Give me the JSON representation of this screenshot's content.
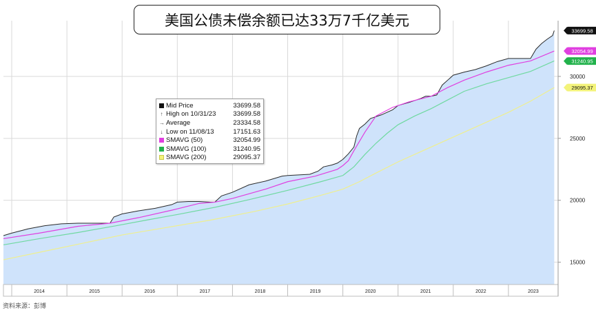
{
  "title": "美国公债未偿余额已达33万7千亿美元",
  "footer_text": "资料来源：彭博",
  "colors": {
    "area_fill": "#cfe3fb",
    "area_line": "#2a2a2a",
    "sma50": "#e03fe0",
    "sma100": "#6fd9a0",
    "sma200": "#efef8e",
    "grid": "#d9d9d9"
  },
  "legend": [
    {
      "name": "Mid Price",
      "value": "33699.58",
      "marker": "black-square"
    },
    {
      "name": "High on 10/31/23",
      "value": "33699.58",
      "marker": "high-arrow"
    },
    {
      "name": "Average",
      "value": "23334.58",
      "marker": "average-dash"
    },
    {
      "name": "Low on 11/08/13",
      "value": "17151.63",
      "marker": "low-arrow"
    },
    {
      "name": "SMAVG (50)",
      "value": "32054.99",
      "marker": "magenta-square"
    },
    {
      "name": "SMAVG (100)",
      "value": "31240.95",
      "marker": "green-square"
    },
    {
      "name": "SMAVG (200)",
      "value": "29095.37",
      "marker": "yellow-square"
    }
  ],
  "chart_data": {
    "type": "area",
    "title": "美国公债未偿余额已达33万7千亿美元",
    "x_tick_labels": [
      "2014",
      "2015",
      "2016",
      "2017",
      "2018",
      "2019",
      "2020",
      "2021",
      "2022",
      "2023"
    ],
    "y_tick_labels": [
      "15000",
      "20000",
      "25000",
      "30000"
    ],
    "y_ticks": [
      15000,
      20000,
      25000,
      30000
    ],
    "ylim": [
      13200,
      34500
    ],
    "xlim": [
      2013.85,
      2023.9
    ],
    "grid": true,
    "legend_position": "upper-left",
    "series": [
      {
        "name": "Mid Price",
        "style": "area",
        "x": [
          2013.85,
          2014.0,
          2014.3,
          2014.6,
          2014.9,
          2015.2,
          2015.5,
          2015.78,
          2015.85,
          2016.0,
          2016.3,
          2016.6,
          2016.9,
          2017.0,
          2017.2,
          2017.4,
          2017.6,
          2017.68,
          2017.8,
          2018.0,
          2018.3,
          2018.6,
          2018.9,
          2019.0,
          2019.2,
          2019.4,
          2019.55,
          2019.65,
          2019.8,
          2019.9,
          2020.0,
          2020.1,
          2020.2,
          2020.25,
          2020.3,
          2020.4,
          2020.5,
          2020.7,
          2020.9,
          2021.0,
          2021.2,
          2021.4,
          2021.5,
          2021.6,
          2021.7,
          2021.8,
          2021.9,
          2021.95,
          2022.0,
          2022.2,
          2022.4,
          2022.6,
          2022.8,
          2023.0,
          2023.2,
          2023.4,
          2023.5,
          2023.6,
          2023.7,
          2023.8,
          2023.83
        ],
        "y": [
          17150,
          17350,
          17700,
          17950,
          18100,
          18150,
          18150,
          18150,
          18650,
          18900,
          19150,
          19350,
          19650,
          19850,
          19900,
          19900,
          19850,
          19850,
          20350,
          20650,
          21250,
          21550,
          21950,
          22000,
          22050,
          22100,
          22350,
          22700,
          22850,
          23000,
          23300,
          23750,
          24300,
          25200,
          25800,
          26150,
          26600,
          26900,
          27300,
          27650,
          27900,
          28200,
          28400,
          28400,
          28500,
          29300,
          29700,
          29900,
          30100,
          30350,
          30550,
          30850,
          31200,
          31450,
          31450,
          31450,
          32200,
          32650,
          33000,
          33300,
          33700
        ]
      },
      {
        "name": "SMAVG (50)",
        "style": "line",
        "x": [
          2013.85,
          2014.5,
          2015.2,
          2015.78,
          2016.3,
          2016.9,
          2017.4,
          2017.68,
          2018.0,
          2018.6,
          2019.0,
          2019.5,
          2019.9,
          2020.0,
          2020.1,
          2020.2,
          2020.4,
          2020.6,
          2020.9,
          2021.2,
          2021.6,
          2021.9,
          2022.2,
          2022.6,
          2023.0,
          2023.4,
          2023.83
        ],
        "y": [
          16900,
          17350,
          17900,
          18150,
          18600,
          19200,
          19750,
          19850,
          20150,
          20900,
          21500,
          21950,
          22500,
          22800,
          23200,
          24000,
          25500,
          26800,
          27500,
          27950,
          28400,
          29100,
          29700,
          30350,
          30900,
          31250,
          32050
        ]
      },
      {
        "name": "SMAVG (100)",
        "style": "line",
        "x": [
          2013.85,
          2014.5,
          2015.2,
          2015.9,
          2016.5,
          2017.0,
          2017.7,
          2018.3,
          2019.0,
          2019.6,
          2020.0,
          2020.2,
          2020.4,
          2020.6,
          2020.8,
          2021.0,
          2021.3,
          2021.6,
          2021.9,
          2022.2,
          2022.6,
          2023.0,
          2023.4,
          2023.83
        ],
        "y": [
          16400,
          16900,
          17400,
          17950,
          18450,
          18850,
          19450,
          20050,
          20800,
          21500,
          22000,
          22700,
          23700,
          24600,
          25400,
          26100,
          26800,
          27400,
          28100,
          28800,
          29400,
          29900,
          30400,
          31250
        ]
      },
      {
        "name": "SMAVG (200)",
        "style": "line",
        "x": [
          2013.85,
          2014.5,
          2015.2,
          2016.0,
          2016.8,
          2017.6,
          2018.4,
          2019.0,
          2019.6,
          2020.0,
          2020.3,
          2020.6,
          2021.0,
          2021.4,
          2021.8,
          2022.2,
          2022.6,
          2023.0,
          2023.4,
          2023.83
        ],
        "y": [
          15200,
          15800,
          16450,
          17200,
          17800,
          18400,
          19100,
          19700,
          20400,
          20900,
          21500,
          22200,
          23100,
          23900,
          24700,
          25500,
          26300,
          27100,
          28000,
          29100
        ]
      }
    ],
    "last_value_tags": [
      {
        "label": "33699.58",
        "value": 33699.58,
        "color": "#111111",
        "text_color": "#ffffff"
      },
      {
        "label": "32054.99",
        "value": 32054.99,
        "color": "#e03fe0",
        "text_color": "#ffffff"
      },
      {
        "label": "31240.95",
        "value": 31240.95,
        "color": "#22b24c",
        "text_color": "#ffffff"
      },
      {
        "label": "29095.37",
        "value": 29095.37,
        "color": "#f3f37a",
        "text_color": "#111111"
      }
    ]
  }
}
